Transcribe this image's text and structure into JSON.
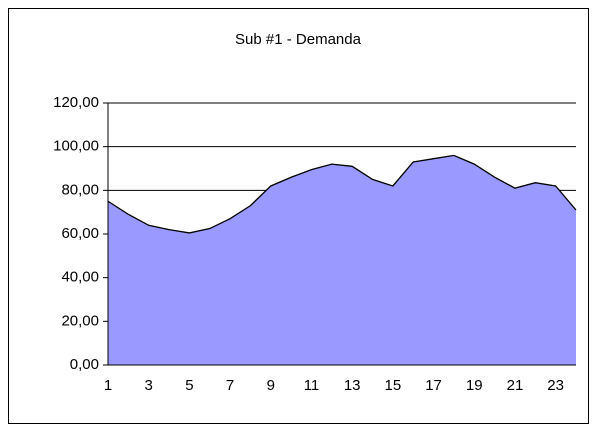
{
  "chart_data": {
    "type": "area",
    "title": "Sub #1 - Demanda",
    "categories": [
      "1",
      null,
      "3",
      null,
      "5",
      null,
      "7",
      null,
      "9",
      null,
      "11",
      null,
      "13",
      null,
      "15",
      null,
      "17",
      null,
      "19",
      null,
      "21",
      null,
      "23",
      null
    ],
    "values": [
      75,
      69,
      64,
      62,
      60.5,
      62.5,
      67,
      73,
      82,
      86,
      89.5,
      92,
      91,
      85,
      82,
      93,
      94.5,
      96,
      92,
      86,
      81,
      83.5,
      82,
      71
    ],
    "color": "#9999ff",
    "ylim": [
      0,
      120
    ],
    "yticks": [
      {
        "value": 0,
        "label": "0,00"
      },
      {
        "value": 20,
        "label": "20,00"
      },
      {
        "value": 40,
        "label": "40,00"
      },
      {
        "value": 60,
        "label": "60,00"
      },
      {
        "value": 80,
        "label": "80,00"
      },
      {
        "value": 100,
        "label": "100,00"
      },
      {
        "value": 120,
        "label": "120,00"
      }
    ],
    "grid": true
  }
}
